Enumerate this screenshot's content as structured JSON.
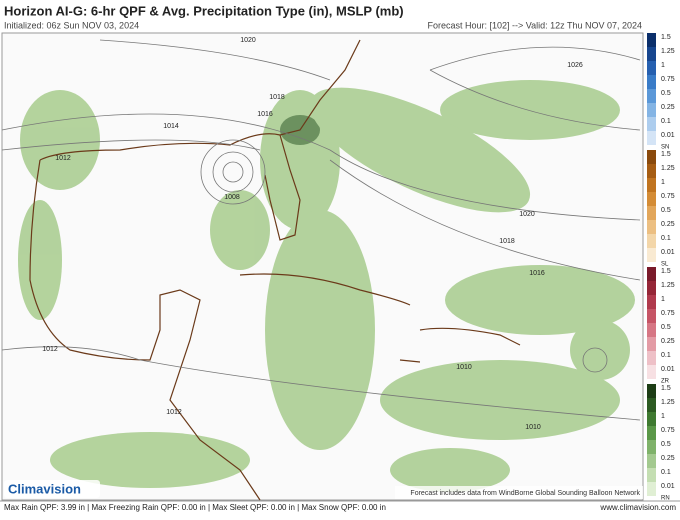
{
  "header": {
    "title": "Horizon AI-G: 6-hr QPF & Avg. Precipitation Type (in), MSLP (mb)",
    "initialized": "Initialized: 06z Sun NOV 03, 2024",
    "valid": "Forecast Hour: [102] --> Valid: 12z Thu NOV 07, 2024"
  },
  "map": {
    "isobar_labels": [
      "1020",
      "1026",
      "1018",
      "1016",
      "1014",
      "1012",
      "1008",
      "1020",
      "1018",
      "1016",
      "1012",
      "1010",
      "1012",
      "1010"
    ],
    "logo": "Climavision",
    "credit": "Forecast includes data from WindBorne Global Sounding Balloon Network"
  },
  "legend": {
    "scales": [
      {
        "type": "SN",
        "labels": [
          "1.5",
          "1.25",
          "1",
          "0.75",
          "0.5",
          "0.25",
          "0.1",
          "0.01"
        ],
        "colors": [
          "#0b2f6b",
          "#17468f",
          "#2660b0",
          "#3a7cc8",
          "#5b98d8",
          "#84b4e4",
          "#adcdee",
          "#d4e4f6"
        ]
      },
      {
        "type": "SL",
        "labels": [
          "1.5",
          "1.25",
          "1",
          "0.75",
          "0.5",
          "0.25",
          "0.1",
          "0.01"
        ],
        "colors": [
          "#8a4a0c",
          "#a65d13",
          "#c07420",
          "#d48c36",
          "#e2a65a",
          "#ecbf82",
          "#f3d6a9",
          "#f9ead2"
        ]
      },
      {
        "type": "ZR",
        "labels": [
          "1.5",
          "1.25",
          "1",
          "0.75",
          "0.5",
          "0.25",
          "0.1",
          "0.01"
        ],
        "colors": [
          "#7a1a2a",
          "#952637",
          "#b03a4d",
          "#c65566",
          "#d67684",
          "#e39ba5",
          "#eec0c7",
          "#f7e0e3"
        ]
      },
      {
        "type": "RN",
        "labels": [
          "1.5",
          "1.25",
          "1",
          "0.75",
          "0.5",
          "0.25",
          "0.1",
          "0.01"
        ],
        "colors": [
          "#1d3d16",
          "#2c5a22",
          "#3f7a31",
          "#5a9748",
          "#7fb26a",
          "#a3c98f",
          "#c4deb2",
          "#e0efd4"
        ]
      }
    ]
  },
  "footer": {
    "stats": "Max Rain QPF: 3.99 in | Max Freezing Rain QPF: 0.00 in | Max Sleet QPF: 0.00 in | Max Snow QPF: 0.00 in",
    "url": "www.climavision.com"
  }
}
